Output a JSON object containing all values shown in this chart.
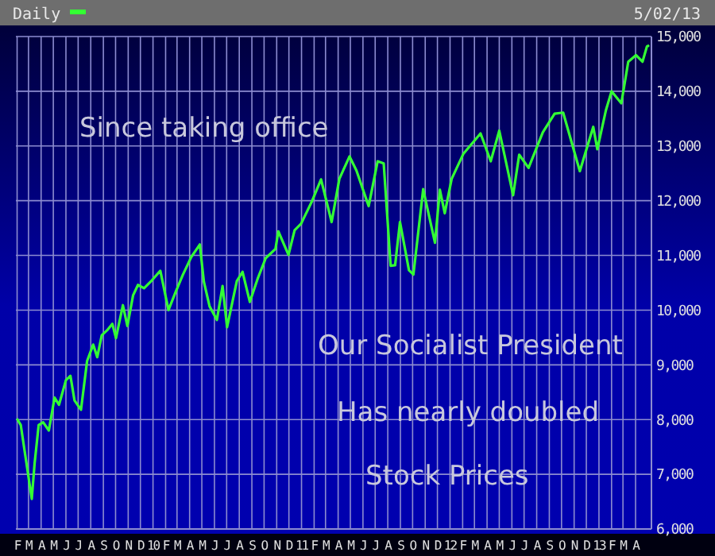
{
  "chart_data": {
    "type": "line",
    "annotations": [
      "5/02/13",
      "Since taking office",
      "Our Socialist President",
      "Has nearly doubled",
      "Stock Prices"
    ],
    "x": [
      "2009-02-02",
      "2009-02-10",
      "2009-02-20",
      "2009-03-09",
      "2009-03-16",
      "2009-03-26",
      "2009-04-06",
      "2009-04-20",
      "2009-05-04",
      "2009-05-15",
      "2009-06-01",
      "2009-06-12",
      "2009-06-22",
      "2009-07-08",
      "2009-07-23",
      "2009-08-07",
      "2009-08-17",
      "2009-08-28",
      "2009-09-10",
      "2009-09-23",
      "2009-10-02",
      "2009-10-19",
      "2009-10-30",
      "2009-11-13",
      "2009-11-25",
      "2009-12-10",
      "2009-12-30",
      "2010-01-19",
      "2010-02-08",
      "2010-02-25",
      "2010-03-15",
      "2010-04-05",
      "2010-04-26",
      "2010-05-06",
      "2010-05-20",
      "2010-06-07",
      "2010-06-21",
      "2010-07-02",
      "2010-07-26",
      "2010-08-09",
      "2010-08-27",
      "2010-09-15",
      "2010-10-05",
      "2010-10-29",
      "2010-11-05",
      "2010-11-30",
      "2010-12-15",
      "2010-12-31",
      "2011-01-26",
      "2011-02-18",
      "2011-03-16",
      "2011-04-04",
      "2011-04-29",
      "2011-05-16",
      "2011-06-15",
      "2011-07-07",
      "2011-07-22",
      "2011-08-08",
      "2011-08-19",
      "2011-08-31",
      "2011-09-22",
      "2011-10-03",
      "2011-10-27",
      "2011-11-25",
      "2011-12-07",
      "2011-12-19",
      "2012-01-05",
      "2012-02-03",
      "2012-03-16",
      "2012-04-10",
      "2012-05-01",
      "2012-06-04",
      "2012-06-19",
      "2012-07-12",
      "2012-08-16",
      "2012-09-14",
      "2012-10-05",
      "2012-11-15",
      "2012-12-18",
      "2012-12-28",
      "2013-01-18",
      "2013-02-01",
      "2013-02-25",
      "2013-03-14",
      "2013-04-02",
      "2013-04-18",
      "2013-04-29",
      "2013-05-02"
    ],
    "series": [
      {
        "name": "Daily",
        "color": "#33ff33",
        "values": [
          8000,
          7900,
          7400,
          6550,
          7200,
          7900,
          7950,
          7800,
          8400,
          8270,
          8720,
          8800,
          8350,
          8180,
          9070,
          9370,
          9140,
          9540,
          9630,
          9750,
          9490,
          10090,
          9710,
          10270,
          10460,
          10400,
          10550,
          10720,
          10000,
          10320,
          10640,
          10970,
          11200,
          10520,
          10070,
          9820,
          10440,
          9690,
          10530,
          10700,
          10150,
          10570,
          10950,
          11120,
          11440,
          11010,
          11460,
          11580,
          11980,
          12390,
          11610,
          12400,
          12810,
          12550,
          11900,
          12720,
          12680,
          10810,
          10820,
          11610,
          10730,
          10650,
          12210,
          11230,
          12200,
          11770,
          12400,
          12860,
          13230,
          12720,
          13280,
          12100,
          12840,
          12600,
          13250,
          13590,
          13610,
          12540,
          13350,
          12940,
          13650,
          14000,
          13780,
          14540,
          14660,
          14540,
          14820,
          14830
        ]
      }
    ],
    "xlim": [
      "2009-01-29",
      "2013-05-10"
    ],
    "xticks": [
      {
        "value": "2009-02-01",
        "label": "F"
      },
      {
        "value": "2009-03-01",
        "label": "M"
      },
      {
        "value": "2009-04-01",
        "label": "A"
      },
      {
        "value": "2009-05-01",
        "label": "M"
      },
      {
        "value": "2009-06-01",
        "label": "J"
      },
      {
        "value": "2009-07-01",
        "label": "J"
      },
      {
        "value": "2009-08-01",
        "label": "A"
      },
      {
        "value": "2009-09-01",
        "label": "S"
      },
      {
        "value": "2009-10-01",
        "label": "O"
      },
      {
        "value": "2009-11-01",
        "label": "N"
      },
      {
        "value": "2009-12-01",
        "label": "D"
      },
      {
        "value": "2010-01-01",
        "label": "10"
      },
      {
        "value": "2010-02-01",
        "label": "F"
      },
      {
        "value": "2010-03-01",
        "label": "M"
      },
      {
        "value": "2010-04-01",
        "label": "A"
      },
      {
        "value": "2010-05-01",
        "label": "M"
      },
      {
        "value": "2010-06-01",
        "label": "J"
      },
      {
        "value": "2010-07-01",
        "label": "J"
      },
      {
        "value": "2010-08-01",
        "label": "A"
      },
      {
        "value": "2010-09-01",
        "label": "S"
      },
      {
        "value": "2010-10-01",
        "label": "O"
      },
      {
        "value": "2010-11-01",
        "label": "N"
      },
      {
        "value": "2010-12-01",
        "label": "D"
      },
      {
        "value": "2011-01-01",
        "label": "11"
      },
      {
        "value": "2011-02-01",
        "label": "F"
      },
      {
        "value": "2011-03-01",
        "label": "M"
      },
      {
        "value": "2011-04-01",
        "label": "A"
      },
      {
        "value": "2011-05-01",
        "label": "M"
      },
      {
        "value": "2011-06-01",
        "label": "J"
      },
      {
        "value": "2011-07-01",
        "label": "J"
      },
      {
        "value": "2011-08-01",
        "label": "A"
      },
      {
        "value": "2011-09-01",
        "label": "S"
      },
      {
        "value": "2011-10-01",
        "label": "O"
      },
      {
        "value": "2011-11-01",
        "label": "N"
      },
      {
        "value": "2011-12-01",
        "label": "D"
      },
      {
        "value": "2012-01-01",
        "label": "12"
      },
      {
        "value": "2012-02-01",
        "label": "F"
      },
      {
        "value": "2012-03-01",
        "label": "M"
      },
      {
        "value": "2012-04-01",
        "label": "A"
      },
      {
        "value": "2012-05-01",
        "label": "M"
      },
      {
        "value": "2012-06-01",
        "label": "J"
      },
      {
        "value": "2012-07-01",
        "label": "J"
      },
      {
        "value": "2012-08-01",
        "label": "A"
      },
      {
        "value": "2012-09-01",
        "label": "S"
      },
      {
        "value": "2012-10-01",
        "label": "O"
      },
      {
        "value": "2012-11-01",
        "label": "N"
      },
      {
        "value": "2012-12-01",
        "label": "D"
      },
      {
        "value": "2013-01-01",
        "label": "13"
      },
      {
        "value": "2013-02-01",
        "label": "F"
      },
      {
        "value": "2013-03-01",
        "label": "M"
      },
      {
        "value": "2013-04-01",
        "label": "A"
      }
    ],
    "ylim": [
      6000,
      15000
    ],
    "yticks": [
      {
        "value": 6000,
        "label": "6,000"
      },
      {
        "value": 7000,
        "label": "7,000"
      },
      {
        "value": 8000,
        "label": "8,000"
      },
      {
        "value": 9000,
        "label": "9,000"
      },
      {
        "value": 10000,
        "label": "10,000"
      },
      {
        "value": 11000,
        "label": "11,000"
      },
      {
        "value": 12000,
        "label": "12,000"
      },
      {
        "value": 13000,
        "label": "13,000"
      },
      {
        "value": 14000,
        "label": "14,000"
      },
      {
        "value": 15000,
        "label": "15,000"
      }
    ],
    "grid": true,
    "legend": "top left",
    "line_style": "solid",
    "marker": "none"
  }
}
